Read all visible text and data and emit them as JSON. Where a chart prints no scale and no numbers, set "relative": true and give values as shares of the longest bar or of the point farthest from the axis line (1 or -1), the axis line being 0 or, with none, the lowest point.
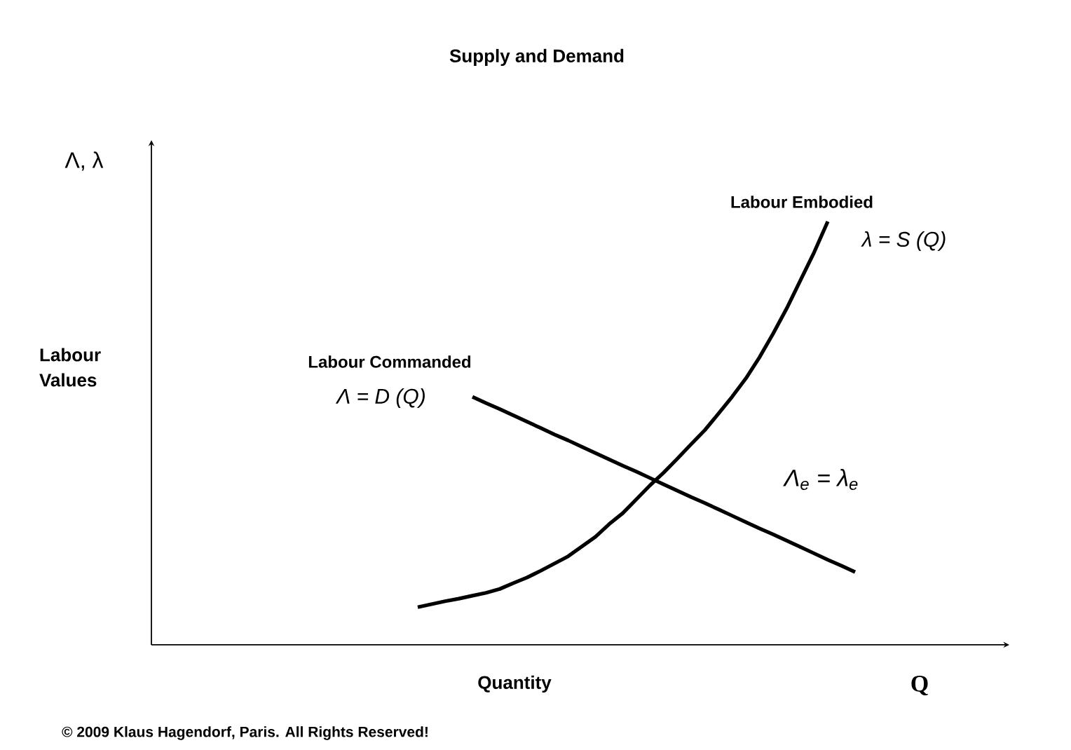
{
  "chart_data": {
    "type": "line",
    "title": "Supply and Demand",
    "xlabel": "Quantity",
    "relative": true,
    "categories": [
      null,
      null,
      null,
      null,
      null,
      null,
      null,
      null,
      null,
      null,
      null,
      null,
      null,
      null,
      null,
      null,
      null,
      null,
      null,
      null,
      null,
      null,
      null,
      null,
      null,
      null,
      null,
      null,
      null,
      null,
      null,
      null,
      null
    ],
    "series": [
      {
        "name": "Labour Commanded",
        "color": "#000000",
        "values": [
          null,
          null,
          null,
          null,
          0.586,
          0.571,
          0.557,
          0.542,
          0.527,
          0.512,
          0.497,
          0.483,
          0.468,
          0.453,
          0.438,
          0.423,
          0.409,
          0.394,
          0.379,
          0.364,
          0.349,
          0.335,
          0.32,
          0.305,
          0.29,
          0.275,
          0.261,
          0.246,
          0.231,
          0.216,
          0.201,
          0.187,
          0.172
        ]
      },
      {
        "name": "Labour Embodied",
        "color": "#000000",
        "values": [
          0.089,
          0.096,
          0.103,
          0.109,
          0.116,
          0.123,
          0.132,
          0.146,
          0.159,
          0.175,
          0.192,
          0.209,
          0.232,
          0.255,
          0.285,
          0.311,
          0.344,
          0.377,
          0.407,
          0.44,
          0.474,
          0.507,
          0.546,
          0.586,
          0.629,
          0.679,
          0.735,
          0.795,
          0.861,
          0.927,
          1.0,
          null,
          null
        ]
      }
    ],
    "annotations": [
      "Λ, λ",
      "Λ = D (Q)",
      "λ = S (Q)",
      "Λ$_{e}$ = λ$_{e}$",
      "Q",
      "© 2009 Klaus Hagendorf, Paris. All Rights Reserved!",
      "Labour Values"
    ]
  }
}
